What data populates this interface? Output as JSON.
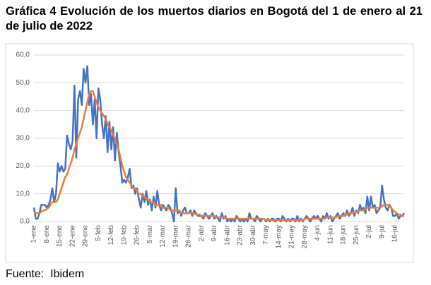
{
  "chart_data": {
    "type": "line",
    "title": "Gráfica 4 Evolución de los muertos diarios en Bogotá del 1 de enero al 21 de julio de 2022",
    "source": "Fuente:  Ibidem",
    "categories": [
      "1-ene",
      null,
      null,
      null,
      null,
      null,
      null,
      "8-ene",
      null,
      null,
      null,
      null,
      null,
      null,
      "15-ene",
      null,
      null,
      null,
      null,
      null,
      null,
      "22-ene",
      null,
      null,
      null,
      null,
      null,
      null,
      "29-ene",
      null,
      null,
      null,
      null,
      null,
      null,
      "5-feb",
      null,
      null,
      null,
      null,
      null,
      null,
      "12-feb",
      null,
      null,
      null,
      null,
      null,
      null,
      "19-feb",
      null,
      null,
      null,
      null,
      null,
      null,
      "26-feb",
      null,
      null,
      null,
      null,
      null,
      null,
      "5-mar",
      null,
      null,
      null,
      null,
      null,
      null,
      "12-mar",
      null,
      null,
      null,
      null,
      null,
      null,
      "19-mar",
      null,
      null,
      null,
      null,
      null,
      null,
      "26-mar",
      null,
      null,
      null,
      null,
      null,
      null,
      "2-abr",
      null,
      null,
      null,
      null,
      null,
      null,
      "9-abr",
      null,
      null,
      null,
      null,
      null,
      null,
      "16-abr",
      null,
      null,
      null,
      null,
      null,
      null,
      "23-abr",
      null,
      null,
      null,
      null,
      null,
      null,
      "30-abr",
      null,
      null,
      null,
      null,
      null,
      null,
      "7-may",
      null,
      null,
      null,
      null,
      null,
      null,
      "14-may",
      null,
      null,
      null,
      null,
      null,
      null,
      "21-may",
      null,
      null,
      null,
      null,
      null,
      null,
      "28-may",
      null,
      null,
      null,
      null,
      null,
      null,
      "4-jun",
      null,
      null,
      null,
      null,
      null,
      null,
      "11-jun",
      null,
      null,
      null,
      null,
      null,
      null,
      "18-jun",
      null,
      null,
      null,
      null,
      null,
      null,
      "25-jun",
      null,
      null,
      null,
      null,
      null,
      null,
      "2-jul",
      null,
      null,
      null,
      null,
      null,
      null,
      "9-jul",
      null,
      null,
      null,
      null,
      null,
      null,
      "16-jul",
      null,
      null,
      null,
      null,
      null
    ],
    "series": [
      {
        "color": "#4472c4",
        "values": [
          5,
          1,
          1,
          3,
          6,
          6,
          6,
          5,
          6,
          8,
          12,
          7,
          10,
          21,
          18,
          20,
          18,
          19,
          31,
          28,
          26,
          29,
          49,
          23,
          44,
          47,
          42,
          55,
          50,
          56,
          42,
          46,
          35,
          44,
          30,
          48,
          44,
          35,
          30,
          38,
          25,
          36,
          26,
          34,
          22,
          32,
          25,
          20,
          14,
          15,
          14,
          16,
          19,
          12,
          13,
          10,
          12,
          8,
          5,
          10,
          7,
          11,
          6,
          8,
          4,
          9,
          5,
          11,
          6,
          4,
          6,
          5,
          4,
          6,
          5,
          3,
          0,
          12,
          3,
          4,
          2,
          4,
          5,
          3,
          3,
          4,
          2,
          4,
          3,
          2,
          2,
          2,
          1,
          3,
          2,
          1,
          2,
          3,
          1,
          2,
          1,
          0,
          3,
          1,
          2,
          0,
          1,
          0,
          1,
          0,
          2,
          1,
          0,
          1,
          0,
          1,
          0,
          3,
          1,
          1,
          0,
          2,
          1,
          0,
          1,
          1,
          0,
          1,
          0,
          1,
          1,
          0,
          1,
          1,
          0,
          2,
          1,
          0,
          1,
          0,
          1,
          1,
          0,
          2,
          0,
          1,
          0,
          1,
          2,
          1,
          0,
          1,
          2,
          1,
          2,
          1,
          0,
          2,
          1,
          3,
          1,
          2,
          0,
          1,
          2,
          3,
          1,
          2,
          3,
          2,
          4,
          2,
          3,
          5,
          2,
          4,
          3,
          6,
          4,
          5,
          3,
          9,
          4,
          9,
          5,
          6,
          3,
          4,
          5,
          13,
          8,
          5,
          4,
          6,
          5,
          2,
          2,
          3,
          1,
          2,
          2,
          3
        ]
      },
      {
        "color": "#ed7d31",
        "values": [
          3,
          3,
          3,
          3,
          3.5,
          4,
          4,
          4.5,
          5,
          6,
          7,
          7,
          7,
          8,
          10,
          12,
          14,
          16,
          17,
          19,
          21,
          23,
          26,
          28,
          30,
          32,
          34,
          37,
          40,
          43,
          46,
          47,
          47,
          45,
          43,
          41,
          40,
          39,
          38,
          37,
          35,
          34,
          33,
          31,
          30,
          28,
          26,
          23,
          20,
          18,
          16,
          15,
          14,
          13,
          12,
          12,
          11,
          10,
          10,
          9,
          9,
          8,
          8,
          7,
          7,
          7,
          6,
          6,
          6,
          6,
          5,
          5,
          5,
          5,
          4,
          4,
          4,
          4,
          4,
          4,
          3,
          3,
          3,
          3,
          3,
          3,
          3,
          3,
          2.5,
          2.5,
          2.5,
          2,
          2,
          2,
          2,
          2,
          2,
          2,
          2,
          1.5,
          1.5,
          1.5,
          1.5,
          1.5,
          1.5,
          1,
          1,
          1,
          1,
          1,
          1,
          1,
          1,
          1,
          1,
          1,
          1,
          1,
          1,
          1,
          1,
          1,
          1,
          1,
          1,
          1,
          0.5,
          0.5,
          0.5,
          0.5,
          0.5,
          0.5,
          0.5,
          0.5,
          0.5,
          0.5,
          0.5,
          0.5,
          0.5,
          0.5,
          0.5,
          0.5,
          0.5,
          0.5,
          0.5,
          0.5,
          0.5,
          1,
          1,
          1,
          1,
          1,
          1,
          1,
          1,
          1,
          1,
          1,
          1,
          1.5,
          1.5,
          1.5,
          1.5,
          1.5,
          1.5,
          2,
          2,
          2,
          2,
          2.5,
          2.5,
          3,
          3,
          3,
          3,
          3.5,
          3.5,
          4,
          4,
          4,
          4.5,
          5,
          5,
          5,
          5,
          5,
          5,
          5,
          5,
          5.5,
          6,
          6,
          6,
          5.5,
          5,
          4,
          3.5,
          3,
          2.5,
          2.5,
          2,
          2
        ]
      }
    ],
    "ylim": [
      0,
      60
    ],
    "yticks": [
      {
        "value": 0,
        "label": "0,0"
      },
      {
        "value": 10,
        "label": "10,0"
      },
      {
        "value": 20,
        "label": "20,0"
      },
      {
        "value": 30,
        "label": "30,0"
      },
      {
        "value": 40,
        "label": "40,0"
      },
      {
        "value": 50,
        "label": "50,0"
      },
      {
        "value": 60,
        "label": "60,0"
      }
    ],
    "grid": true
  }
}
